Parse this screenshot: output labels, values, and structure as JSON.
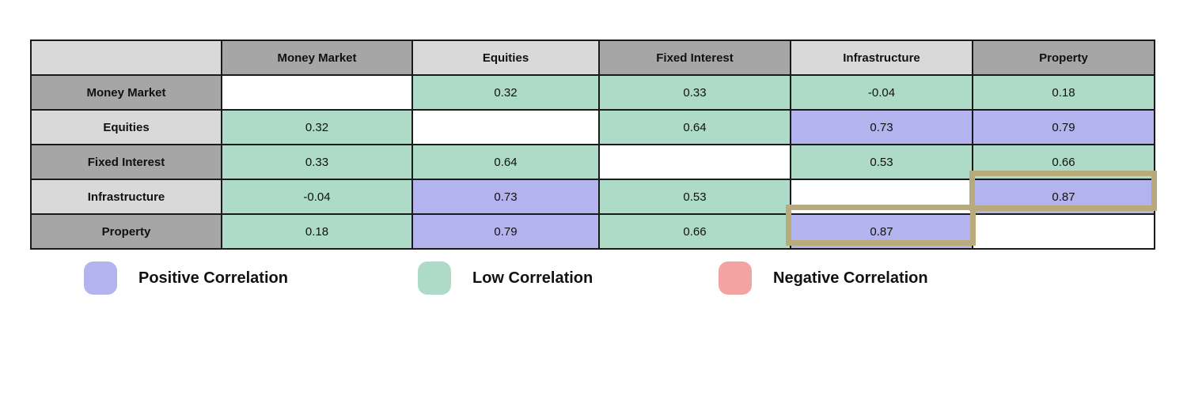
{
  "chart_data": {
    "type": "table",
    "title": "",
    "corner_label": "",
    "columns": [
      "Money Market",
      "Equities",
      "Fixed Interest",
      "Infrastructure",
      "Property"
    ],
    "rows": [
      {
        "label": "Money Market",
        "values": [
          "",
          "0.32",
          "0.33",
          "-0.04",
          "0.18"
        ],
        "classes": [
          "none",
          "low",
          "low",
          "low",
          "low"
        ]
      },
      {
        "label": "Equities",
        "values": [
          "0.32",
          "",
          "0.64",
          "0.73",
          "0.79"
        ],
        "classes": [
          "low",
          "none",
          "low",
          "positive",
          "positive"
        ]
      },
      {
        "label": "Fixed Interest",
        "values": [
          "0.33",
          "0.64",
          "",
          "0.53",
          "0.66"
        ],
        "classes": [
          "low",
          "low",
          "none",
          "low",
          "low"
        ]
      },
      {
        "label": "Infrastructure",
        "values": [
          "-0.04",
          "0.73",
          "0.53",
          "",
          "0.87"
        ],
        "classes": [
          "low",
          "positive",
          "low",
          "none",
          "positive"
        ]
      },
      {
        "label": "Property",
        "values": [
          "0.18",
          "0.79",
          "0.66",
          "0.87",
          ""
        ],
        "classes": [
          "low",
          "positive",
          "low",
          "positive",
          "none"
        ]
      }
    ],
    "highlighted_cells": [
      {
        "row": "Infrastructure",
        "column": "Property",
        "value": "0.87"
      },
      {
        "row": "Property",
        "column": "Infrastructure",
        "value": "0.87"
      }
    ]
  },
  "legend": [
    {
      "key": "positive",
      "label": "Positive Correlation",
      "color": "#b3b3ee"
    },
    {
      "key": "low",
      "label": "Low Correlation",
      "color": "#addbc8"
    },
    {
      "key": "negative",
      "label": "Negative Correlation",
      "color": "#f4a3a3"
    }
  ],
  "colors": {
    "header_dark": "#a6a6a6",
    "header_light": "#d9d9d9",
    "positive": "#b3b3ee",
    "low": "#addbc8",
    "negative": "#f4a3a3",
    "empty": "#ffffff",
    "highlight_border": "#b9aa79"
  }
}
